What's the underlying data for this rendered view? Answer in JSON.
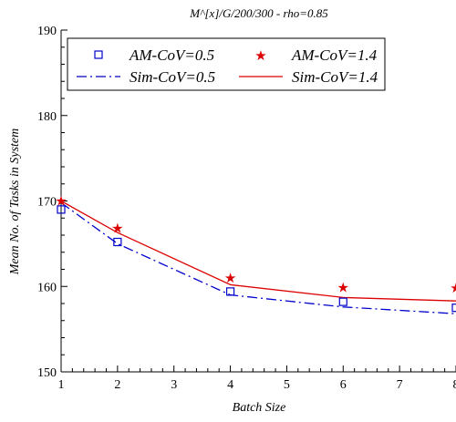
{
  "chart_data": {
    "type": "line",
    "title": "M^[x]/G/200/300 - rho=0.85",
    "xlabel": "Batch Size",
    "ylabel": "Mean No. of Tasks in System",
    "xlim": [
      1,
      8
    ],
    "ylim": [
      150,
      190
    ],
    "xticks": [
      1,
      2,
      3,
      4,
      5,
      6,
      7,
      8
    ],
    "yticks": [
      150,
      160,
      170,
      180,
      190
    ],
    "grid": false,
    "legend_position": "top-left",
    "series": [
      {
        "name": "AM-CoV=0.5",
        "kind": "marker",
        "marker": "square",
        "color": "#0000cc",
        "x": [
          1,
          2,
          4,
          6,
          8
        ],
        "y": [
          169,
          165.2,
          159.4,
          158.2,
          157.5
        ]
      },
      {
        "name": "AM-CoV=1.4",
        "kind": "marker",
        "marker": "star",
        "color": "#dd0000",
        "x": [
          1,
          2,
          4,
          6,
          8
        ],
        "y": [
          170.1,
          166.9,
          161.1,
          160,
          159.9
        ]
      },
      {
        "name": "Sim-CoV=0.5",
        "kind": "line",
        "dash": "dash-dot",
        "color": "#0000cc",
        "x": [
          1,
          2,
          4,
          6,
          8
        ],
        "y": [
          169.8,
          165,
          159,
          157.6,
          156.8
        ]
      },
      {
        "name": "Sim-CoV=1.4",
        "kind": "line",
        "dash": "solid",
        "color": "#dd0000",
        "x": [
          1,
          2,
          4,
          6,
          8
        ],
        "y": [
          170,
          166.3,
          160.2,
          158.7,
          158.3
        ]
      }
    ]
  }
}
